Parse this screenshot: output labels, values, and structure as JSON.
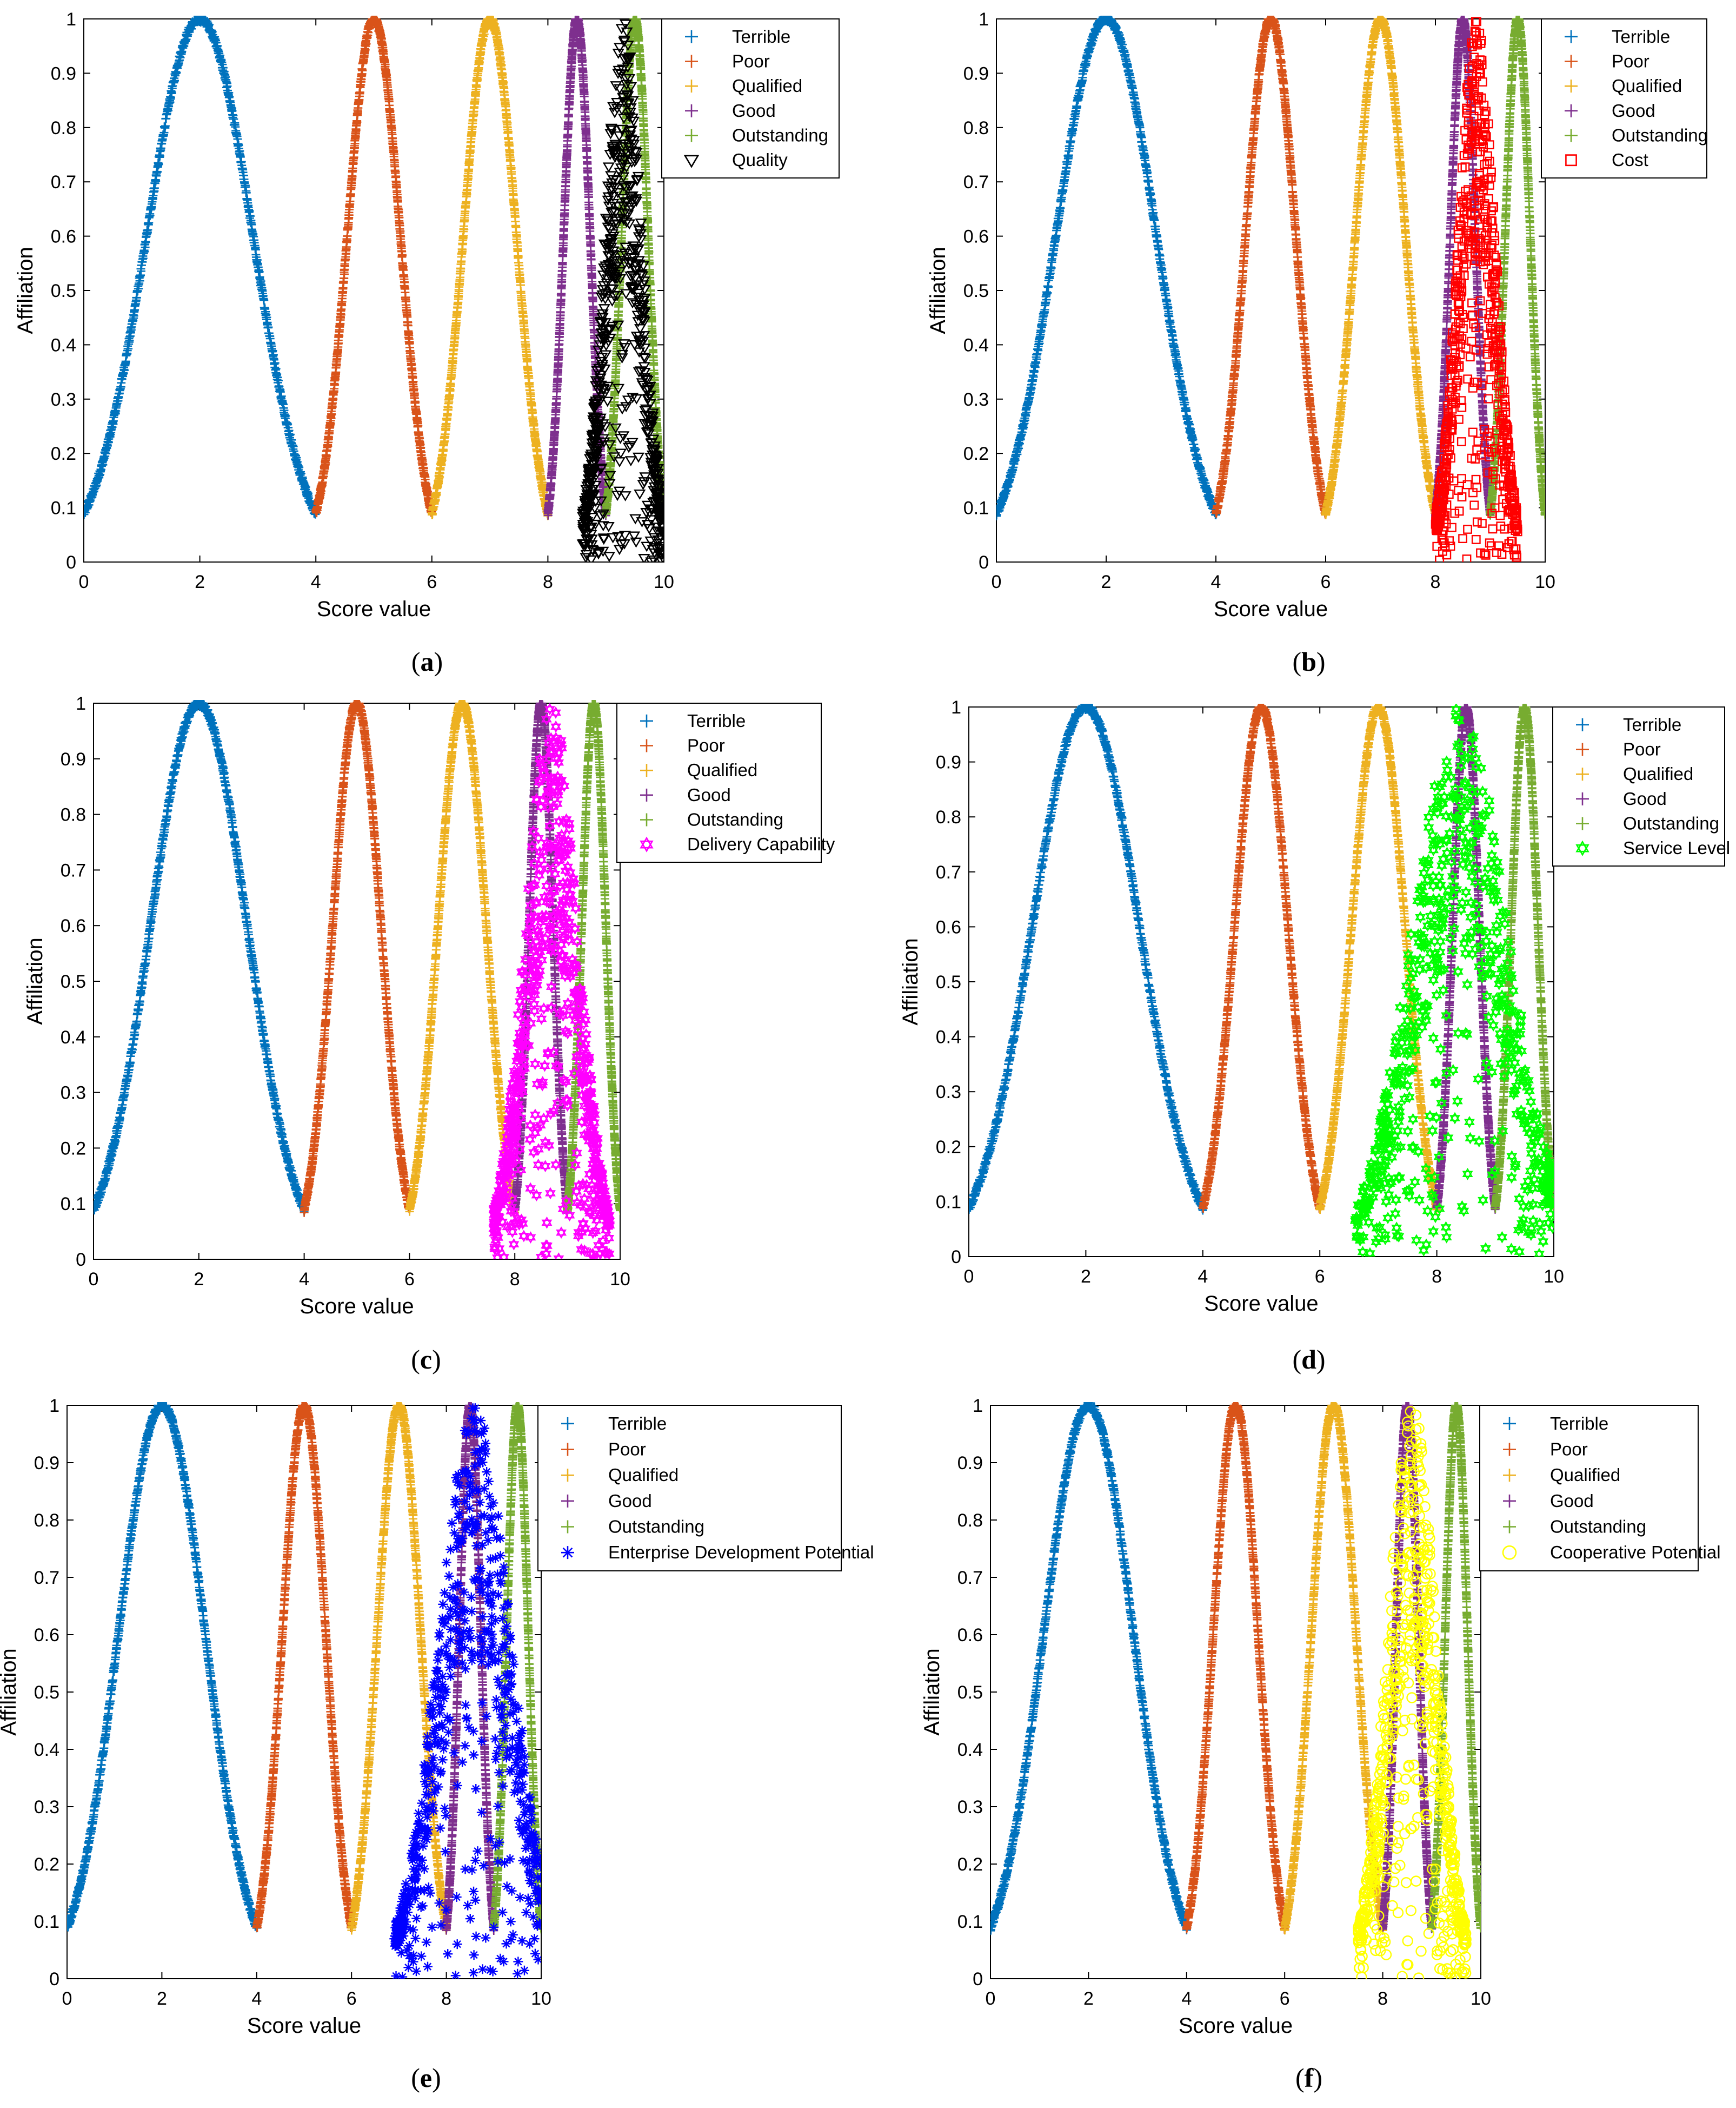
{
  "colors": {
    "Terrible": "#0072BD",
    "Poor": "#D95319",
    "Qualified": "#EDB120",
    "Good": "#7E2F8E",
    "Outstanding": "#77AC30",
    "axis": "#000000"
  },
  "chart_data": [
    {
      "type": "scatter",
      "panel_label": "a",
      "xlabel": "Score value",
      "ylabel": "Affiliation",
      "xlim": [
        0,
        10
      ],
      "ylim": [
        0,
        1
      ],
      "xticks": [
        "0",
        "2",
        "4",
        "6",
        "8",
        "10"
      ],
      "yticks": [
        "0",
        "0.1",
        "0.2",
        "0.3",
        "0.4",
        "0.5",
        "0.6",
        "0.7",
        "0.8",
        "0.9",
        "1"
      ],
      "grid": false,
      "legend_position": "top-right",
      "series": [
        {
          "name": "Terrible",
          "marker": "plus",
          "center": 2,
          "halfwidth": 2
        },
        {
          "name": "Poor",
          "marker": "plus",
          "center": 5,
          "halfwidth": 1
        },
        {
          "name": "Qualified",
          "marker": "plus",
          "center": 7,
          "halfwidth": 1
        },
        {
          "name": "Good",
          "marker": "plus",
          "center": 8.5,
          "halfwidth": 0.5
        },
        {
          "name": "Outstanding",
          "marker": "plus",
          "center": 9.5,
          "halfwidth": 0.5
        },
        {
          "name": "Quality",
          "marker": "triangle-down",
          "color": "#000000",
          "center": 9.3,
          "halfwidth": 0.7,
          "scatter": true
        }
      ]
    },
    {
      "type": "scatter",
      "panel_label": "b",
      "xlabel": "Score value",
      "ylabel": "Affiliation",
      "xlim": [
        0,
        10
      ],
      "ylim": [
        0,
        1
      ],
      "xticks": [
        "0",
        "2",
        "4",
        "6",
        "8",
        "10"
      ],
      "yticks": [
        "0",
        "0.1",
        "0.2",
        "0.3",
        "0.4",
        "0.5",
        "0.6",
        "0.7",
        "0.8",
        "0.9",
        "1"
      ],
      "grid": false,
      "legend_position": "top-right",
      "series": [
        {
          "name": "Terrible",
          "marker": "plus",
          "center": 2,
          "halfwidth": 2
        },
        {
          "name": "Poor",
          "marker": "plus",
          "center": 5,
          "halfwidth": 1
        },
        {
          "name": "Qualified",
          "marker": "plus",
          "center": 7,
          "halfwidth": 1
        },
        {
          "name": "Good",
          "marker": "plus",
          "center": 8.5,
          "halfwidth": 0.5
        },
        {
          "name": "Outstanding",
          "marker": "plus",
          "center": 9.5,
          "halfwidth": 0.5
        },
        {
          "name": "Cost",
          "marker": "square",
          "color": "#FF0000",
          "center": 8.75,
          "halfwidth": 0.75,
          "scatter": true
        }
      ]
    },
    {
      "type": "scatter",
      "panel_label": "c",
      "xlabel": "Score value",
      "ylabel": "Affiliation",
      "xlim": [
        0,
        10
      ],
      "ylim": [
        0,
        1
      ],
      "xticks": [
        "0",
        "2",
        "4",
        "6",
        "8",
        "10"
      ],
      "yticks": [
        "0",
        "0.1",
        "0.2",
        "0.3",
        "0.4",
        "0.5",
        "0.6",
        "0.7",
        "0.8",
        "0.9",
        "1"
      ],
      "grid": false,
      "legend_position": "top-right",
      "series": [
        {
          "name": "Terrible",
          "marker": "plus",
          "center": 2,
          "halfwidth": 2
        },
        {
          "name": "Poor",
          "marker": "plus",
          "center": 5,
          "halfwidth": 1
        },
        {
          "name": "Qualified",
          "marker": "plus",
          "center": 7,
          "halfwidth": 1
        },
        {
          "name": "Good",
          "marker": "plus",
          "center": 8.5,
          "halfwidth": 0.5
        },
        {
          "name": "Outstanding",
          "marker": "plus",
          "center": 9.5,
          "halfwidth": 0.5
        },
        {
          "name": "Delivery Capability",
          "marker": "hexagram",
          "color": "#FF00FF",
          "center": 8.7,
          "halfwidth": 1.1,
          "scatter": true
        }
      ]
    },
    {
      "type": "scatter",
      "panel_label": "d",
      "xlabel": "Score value",
      "ylabel": "Affiliation",
      "xlim": [
        0,
        10
      ],
      "ylim": [
        0,
        1
      ],
      "xticks": [
        "0",
        "2",
        "4",
        "6",
        "8",
        "10"
      ],
      "yticks": [
        "0",
        "0.1",
        "0.2",
        "0.3",
        "0.4",
        "0.5",
        "0.6",
        "0.7",
        "0.8",
        "0.9",
        "1"
      ],
      "grid": false,
      "legend_position": "top-right",
      "series": [
        {
          "name": "Terrible",
          "marker": "plus",
          "center": 2,
          "halfwidth": 2
        },
        {
          "name": "Poor",
          "marker": "plus",
          "center": 5,
          "halfwidth": 1
        },
        {
          "name": "Qualified",
          "marker": "plus",
          "center": 7,
          "halfwidth": 1
        },
        {
          "name": "Good",
          "marker": "plus",
          "center": 8.5,
          "halfwidth": 0.5
        },
        {
          "name": "Outstanding",
          "marker": "plus",
          "center": 9.5,
          "halfwidth": 0.5
        },
        {
          "name": "Service Level",
          "marker": "hexagram",
          "color": "#00FF00",
          "center": 8.4,
          "halfwidth": 1.8,
          "scatter": true
        }
      ]
    },
    {
      "type": "scatter",
      "panel_label": "e",
      "xlabel": "Score value",
      "ylabel": "Affiliation",
      "xlim": [
        0,
        10
      ],
      "ylim": [
        0,
        1
      ],
      "xticks": [
        "0",
        "2",
        "4",
        "6",
        "8",
        "10"
      ],
      "yticks": [
        "0",
        "0.1",
        "0.2",
        "0.3",
        "0.4",
        "0.5",
        "0.6",
        "0.7",
        "0.8",
        "0.9",
        "1"
      ],
      "grid": false,
      "legend_position": "top-right",
      "series": [
        {
          "name": "Terrible",
          "marker": "plus",
          "center": 2,
          "halfwidth": 2
        },
        {
          "name": "Poor",
          "marker": "plus",
          "center": 5,
          "halfwidth": 1
        },
        {
          "name": "Qualified",
          "marker": "plus",
          "center": 7,
          "halfwidth": 1
        },
        {
          "name": "Good",
          "marker": "plus",
          "center": 8.5,
          "halfwidth": 0.5
        },
        {
          "name": "Outstanding",
          "marker": "plus",
          "center": 9.5,
          "halfwidth": 0.5
        },
        {
          "name": "Enterprise Development Potential",
          "marker": "asterisk",
          "color": "#0000FF",
          "center": 8.6,
          "halfwidth": 1.7,
          "scatter": true
        }
      ]
    },
    {
      "type": "scatter",
      "panel_label": "f",
      "xlabel": "Score value",
      "ylabel": "Affiliation",
      "xlim": [
        0,
        10
      ],
      "ylim": [
        0,
        1
      ],
      "xticks": [
        "0",
        "2",
        "4",
        "6",
        "8",
        "10"
      ],
      "yticks": [
        "0",
        "0.1",
        "0.2",
        "0.3",
        "0.4",
        "0.5",
        "0.6",
        "0.7",
        "0.8",
        "0.9",
        "1"
      ],
      "grid": false,
      "legend_position": "top-right",
      "series": [
        {
          "name": "Terrible",
          "marker": "plus",
          "center": 2,
          "halfwidth": 2
        },
        {
          "name": "Poor",
          "marker": "plus",
          "center": 5,
          "halfwidth": 1
        },
        {
          "name": "Qualified",
          "marker": "plus",
          "center": 7,
          "halfwidth": 1
        },
        {
          "name": "Good",
          "marker": "plus",
          "center": 8.5,
          "halfwidth": 0.5
        },
        {
          "name": "Outstanding",
          "marker": "plus",
          "center": 9.5,
          "halfwidth": 0.5
        },
        {
          "name": "Cooperative Potential",
          "marker": "circle",
          "color": "#FFFF00",
          "center": 8.6,
          "halfwidth": 1.1,
          "scatter": true
        }
      ]
    }
  ]
}
